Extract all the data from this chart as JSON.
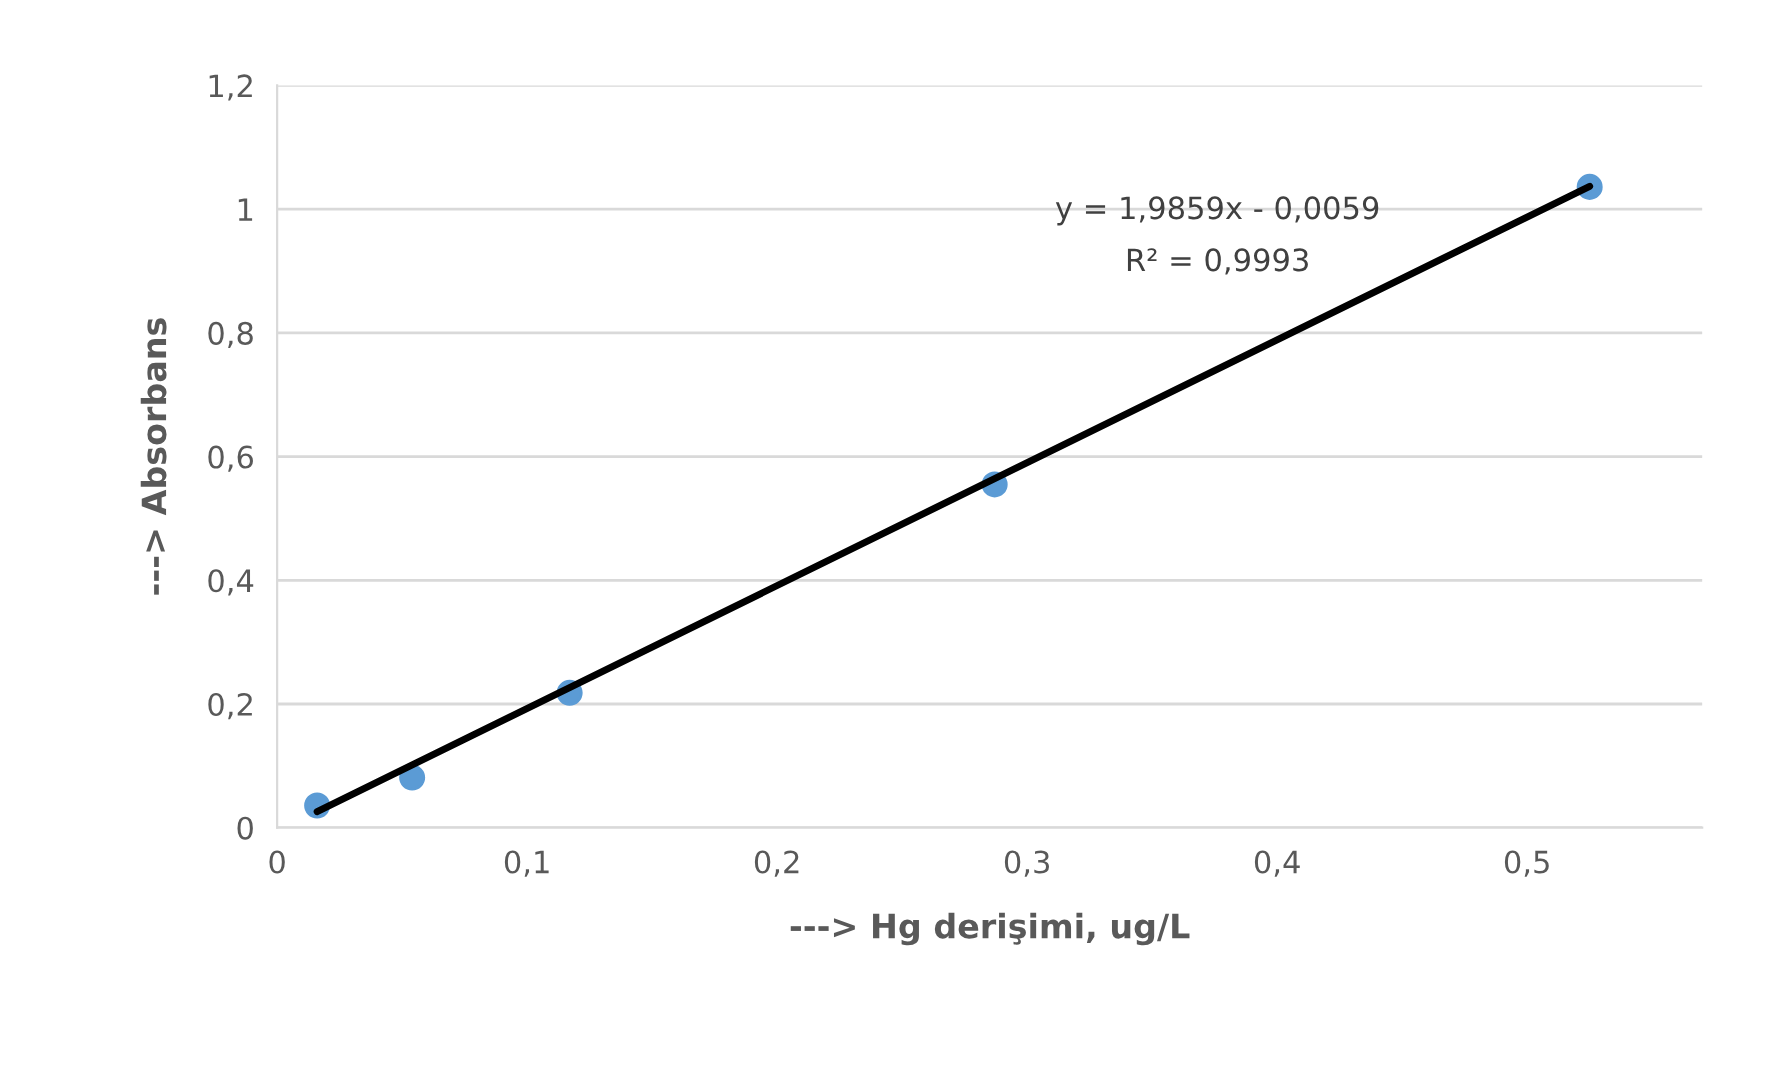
{
  "chart_data": {
    "type": "scatter",
    "xlabel": "---> Hg derişimi, ug/L",
    "ylabel": "---> Absorbans",
    "xlim": [
      0,
      0.57
    ],
    "xticks": [
      {
        "value": 0,
        "label": "0"
      },
      {
        "value": 0.1,
        "label": "0,1"
      },
      {
        "value": 0.2,
        "label": "0,2"
      },
      {
        "value": 0.3,
        "label": "0,3"
      },
      {
        "value": 0.4,
        "label": "0,4"
      },
      {
        "value": 0.5,
        "label": "0,5"
      }
    ],
    "ylim": [
      0,
      1.2
    ],
    "yticks": [
      {
        "value": 0,
        "label": "0"
      },
      {
        "value": 0.2,
        "label": "0,2"
      },
      {
        "value": 0.4,
        "label": "0,4"
      },
      {
        "value": 0.6,
        "label": "0,6"
      },
      {
        "value": 0.8,
        "label": "0,8"
      },
      {
        "value": 1,
        "label": "1"
      },
      {
        "value": 1.2,
        "label": "1,2"
      }
    ],
    "grid": "y",
    "series": [
      {
        "marker": "circle",
        "color": "#5b9bd5",
        "x": [
          0.016,
          0.054,
          0.117,
          0.287,
          0.525
        ],
        "values": [
          0.036,
          0.081,
          0.218,
          0.555,
          1.036
        ]
      },
      {
        "type": "line",
        "marker": "none",
        "color": "#000000",
        "x": [
          0.016,
          0.525
        ],
        "values": [
          0.026,
          1.037
        ]
      }
    ],
    "annotations": [
      "y = 1,9859x - 0,0059",
      "R² = 0,9993"
    ]
  }
}
